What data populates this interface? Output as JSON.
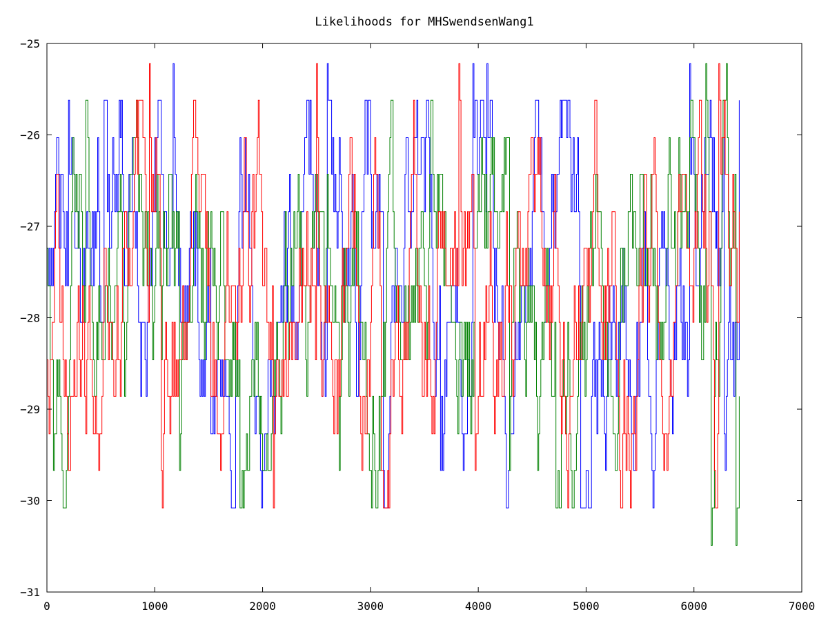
{
  "chart_data": {
    "type": "line",
    "title": "Likelihoods for MHSwendsenWang1",
    "xlabel": "",
    "ylabel": "",
    "xlim": [
      0,
      7000
    ],
    "ylim": [
      -31,
      -25
    ],
    "xticks": [
      0,
      1000,
      2000,
      3000,
      4000,
      5000,
      6000,
      7000
    ],
    "yticks": [
      -31,
      -30,
      -29,
      -28,
      -27,
      -26,
      -25
    ],
    "grid": false,
    "legend": "none",
    "levels": [
      -25.22,
      -25.62,
      -26.03,
      -26.43,
      -26.84,
      -27.24,
      -27.65,
      -28.05,
      -28.46,
      -28.86,
      -29.27,
      -29.67,
      -30.08,
      -30.49
    ],
    "n_points": 6420,
    "series": [
      {
        "color": "#0000ff",
        "description": "MCMC chain trace; values jump between discrete levels",
        "keypoints": [
          [
            0,
            -27.24
          ],
          [
            200,
            -25.62
          ],
          [
            530,
            -25.62
          ],
          [
            1170,
            -25.22
          ],
          [
            1520,
            -29.27
          ],
          [
            2600,
            -25.22
          ],
          [
            3120,
            -29.67
          ],
          [
            3650,
            -29.67
          ],
          [
            3950,
            -25.22
          ],
          [
            4080,
            -25.22
          ],
          [
            4950,
            -30.08
          ],
          [
            5960,
            -25.22
          ],
          [
            6280,
            -29.27
          ],
          [
            6420,
            -25.62
          ]
        ]
      },
      {
        "color": "#008000",
        "description": "MCMC chain trace; values jump between discrete levels",
        "keypoints": [
          [
            0,
            -27.24
          ],
          [
            60,
            -29.67
          ],
          [
            360,
            -25.62
          ],
          [
            1230,
            -29.67
          ],
          [
            1790,
            -30.08
          ],
          [
            2710,
            -29.67
          ],
          [
            2990,
            -29.67
          ],
          [
            4290,
            -29.67
          ],
          [
            4720,
            -30.08
          ],
          [
            6110,
            -25.22
          ],
          [
            6160,
            -30.49
          ],
          [
            6300,
            -25.22
          ],
          [
            6390,
            -30.49
          ],
          [
            6420,
            -28.86
          ]
        ]
      },
      {
        "color": "#ff0000",
        "description": "MCMC chain trace; values jump between discrete levels",
        "keypoints": [
          [
            0,
            -28.46
          ],
          [
            950,
            -25.22
          ],
          [
            1060,
            -29.67
          ],
          [
            2100,
            -30.08
          ],
          [
            2500,
            -25.22
          ],
          [
            3100,
            -29.67
          ],
          [
            3820,
            -25.22
          ],
          [
            3970,
            -29.67
          ],
          [
            5730,
            -29.27
          ],
          [
            6190,
            -29.67
          ],
          [
            6230,
            -25.22
          ],
          [
            6420,
            -26.84
          ]
        ]
      }
    ]
  }
}
